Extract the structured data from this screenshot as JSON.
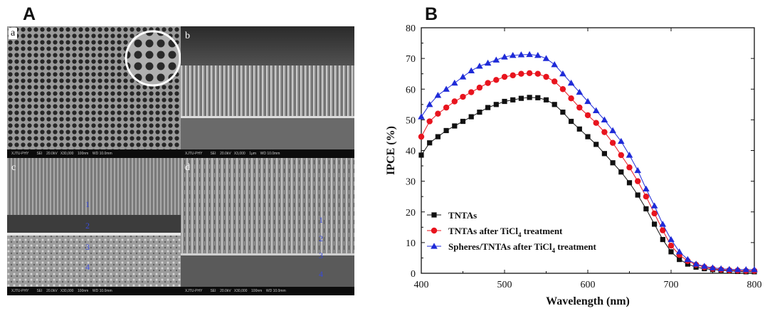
{
  "panels": {
    "a": "A",
    "b": "B"
  },
  "sem": {
    "a": {
      "letter": "a",
      "footer": "XJTU-PHY        SEI    20.0kV   X30,000    100nm    WD 10.0mm"
    },
    "b": {
      "letter": "b",
      "footer": "XJTU-PHY        SEI    20.0kV   X3,000    1μm    WD 10.0mm"
    },
    "c": {
      "letter": "c",
      "footer": "XJTU-PHY        SEI    20.0kV   X30,000    100nm    WD 10.0mm"
    },
    "d": {
      "letter": "d",
      "footer": "XJTU-PHY        SEI    20.0kV   X30,000    100nm    WD 10.0mm"
    },
    "layers": [
      "1",
      "2",
      "3",
      "4"
    ]
  },
  "colors": {
    "black": "#111111",
    "red": "#e8141e",
    "blue": "#1f2bd8"
  },
  "chart_data": {
    "type": "line",
    "xlabel": "Wavelength (nm)",
    "ylabel": "IPCE (%)",
    "xlim": [
      400,
      800
    ],
    "ylim": [
      0,
      80
    ],
    "xticks": [
      "400",
      "500",
      "600",
      "700",
      "800"
    ],
    "yticks": [
      "0",
      "10",
      "20",
      "30",
      "40",
      "50",
      "60",
      "70",
      "80"
    ],
    "x": [
      400,
      410,
      420,
      430,
      440,
      450,
      460,
      470,
      480,
      490,
      500,
      510,
      520,
      530,
      540,
      550,
      560,
      570,
      580,
      590,
      600,
      610,
      620,
      630,
      640,
      650,
      660,
      670,
      680,
      690,
      700,
      710,
      720,
      730,
      740,
      750,
      760,
      770,
      780,
      790,
      800
    ],
    "legend": "bottom-left",
    "series": [
      {
        "name": "TNTAs",
        "marker": "square",
        "color": "#111111",
        "values": [
          38.5,
          42.5,
          44.5,
          46.5,
          48,
          49.5,
          51,
          52.5,
          54,
          55,
          56,
          56.5,
          57,
          57.3,
          57.2,
          56.5,
          55,
          52.5,
          49.5,
          47,
          44.5,
          42,
          39,
          36,
          33,
          29.5,
          25.5,
          21,
          16,
          11,
          7,
          4.5,
          3,
          2,
          1.5,
          1.2,
          1,
          0.8,
          0.6,
          0.5,
          0.5
        ]
      },
      {
        "name_parts": [
          "TNTAs after TiCl",
          "4",
          " treatment"
        ],
        "marker": "circle",
        "color": "#e8141e",
        "values": [
          44.5,
          49.5,
          52,
          54,
          56,
          57.5,
          59,
          60.5,
          62,
          63,
          64,
          64.5,
          65,
          65.2,
          65,
          64,
          62.5,
          60,
          57,
          54,
          51.5,
          49,
          46,
          42.5,
          38.5,
          34.5,
          30,
          25,
          19.5,
          14,
          9,
          6,
          4,
          2.8,
          2,
          1.5,
          1.2,
          1,
          0.9,
          0.8,
          0.8
        ]
      },
      {
        "name_parts": [
          "Spheres/TNTAs after  TiCl",
          "4",
          " treatment"
        ],
        "marker": "triangle",
        "color": "#1f2bd8",
        "values": [
          51,
          55,
          58,
          60,
          62,
          64,
          66,
          67.5,
          68.5,
          69.5,
          70.5,
          71,
          71.2,
          71.3,
          71,
          70,
          68,
          65,
          62,
          59,
          56,
          53,
          50,
          46.5,
          43,
          38.5,
          33.5,
          27.5,
          22,
          16,
          11,
          7,
          4.5,
          3,
          2.3,
          1.8,
          1.5,
          1.3,
          1.2,
          1.2,
          1.2
        ]
      }
    ]
  }
}
